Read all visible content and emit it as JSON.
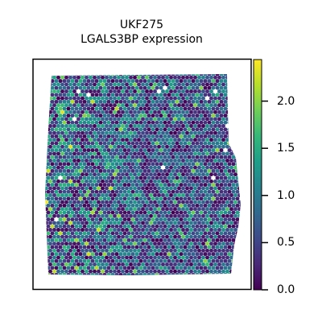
{
  "chart_data": {
    "type": "heatmap",
    "subtype": "spatial-hex-scatter",
    "title_line1": "UKF275",
    "title_line2": "LGALS3BP expression",
    "xlabel": "",
    "ylabel": "",
    "colormap": "viridis",
    "color_range": [
      0.0,
      2.4
    ],
    "colorbar_ticks": [
      {
        "value": 0.0,
        "label": "0.0"
      },
      {
        "value": 0.5,
        "label": "0.5"
      },
      {
        "value": 1.0,
        "label": "1.0"
      },
      {
        "value": 1.5,
        "label": "1.5"
      },
      {
        "value": 2.0,
        "label": "2.0"
      }
    ],
    "grid": false,
    "axes_ticks_visible": false,
    "value_summary": {
      "min": 0.0,
      "max": 2.4,
      "typical": 0.7,
      "higher_region": "left side of tissue"
    }
  },
  "colors": {
    "viridis_stops": [
      "#440154",
      "#482878",
      "#3e4a89",
      "#31688e",
      "#26828e",
      "#1f9e89",
      "#35b779",
      "#6ece58",
      "#b5de2b",
      "#fde725"
    ],
    "frame": "#000000",
    "background": "#ffffff"
  }
}
